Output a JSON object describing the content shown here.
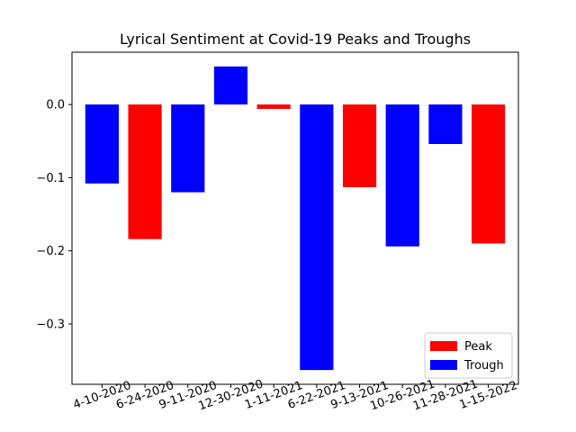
{
  "chart_data": {
    "type": "bar",
    "title": "Lyrical Sentiment at Covid-19 Peaks and Troughs",
    "xlabel": "",
    "ylabel": "",
    "categories": [
      "4-10-2020",
      "6-24-2020",
      "9-11-2020",
      "12-30-2020",
      "1-11-2021",
      "6-22-2021",
      "9-13-2021",
      "10-26-2021",
      "11-28-2021",
      "1-15-2022"
    ],
    "values": [
      -0.108,
      -0.184,
      -0.12,
      0.052,
      -0.006,
      -0.363,
      -0.113,
      -0.194,
      -0.054,
      -0.19
    ],
    "kinds": [
      "Trough",
      "Peak",
      "Trough",
      "Trough",
      "Peak",
      "Trough",
      "Peak",
      "Trough",
      "Trough",
      "Peak"
    ],
    "ylim": [
      -0.3825,
      0.0715
    ],
    "yticks": [
      0.0,
      -0.1,
      -0.2,
      -0.3
    ],
    "ytick_labels": [
      "0.0",
      "−0.1",
      "−0.2",
      "−0.3"
    ],
    "grid": false,
    "legend": {
      "placement": "lower-right",
      "entries": [
        {
          "label": "Peak",
          "color": "#ff0000"
        },
        {
          "label": "Trough",
          "color": "#0000ff"
        }
      ]
    },
    "colors": {
      "Peak": "#ff0000",
      "Trough": "#0000ff"
    }
  }
}
